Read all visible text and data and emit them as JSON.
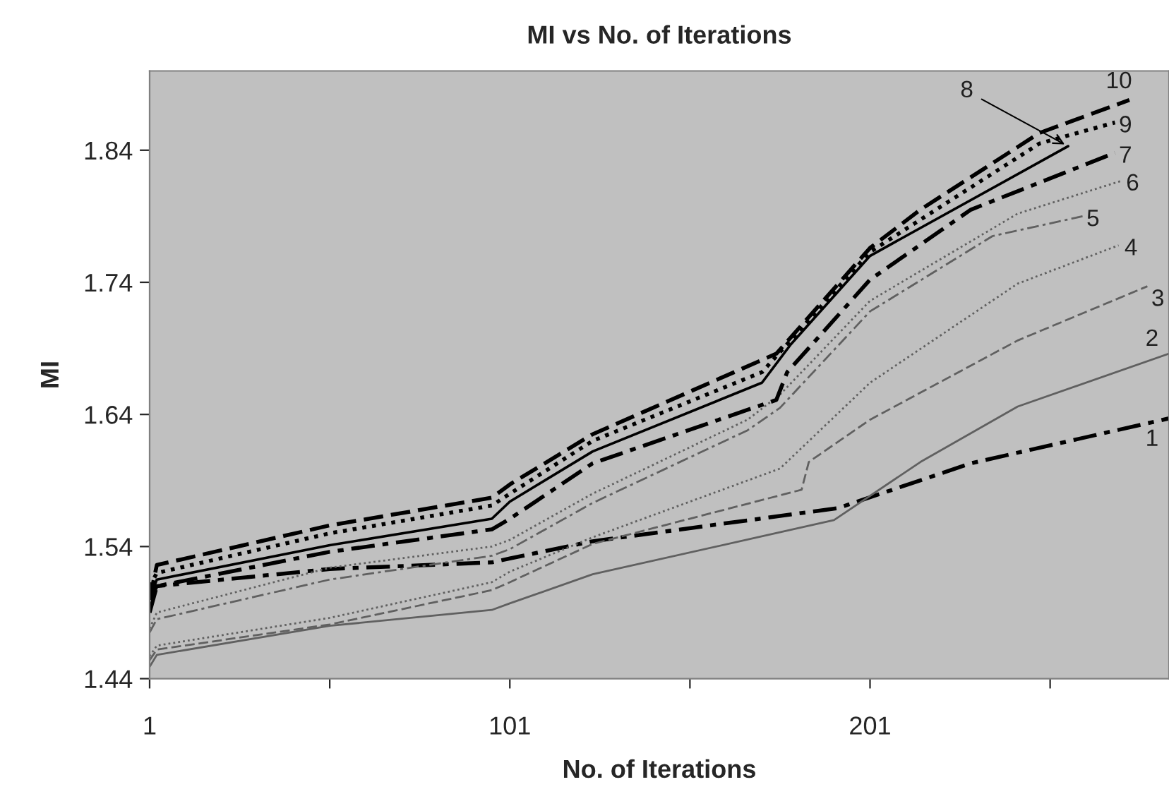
{
  "chart_data": {
    "type": "line",
    "title": "MI vs No. of Iterations",
    "xlabel": "No. of Iterations",
    "ylabel": "MI",
    "xlim": [
      1,
      284
    ],
    "xticks": [
      1,
      {
        "value": 51,
        "label": null
      },
      101,
      {
        "value": 151,
        "label": null
      },
      201,
      {
        "value": 251,
        "label": null
      }
    ],
    "ylim": [
      1.44,
      1.9
    ],
    "yticks": [
      1.44,
      1.54,
      1.64,
      1.74,
      1.84
    ],
    "grid": false,
    "legend": false,
    "marker": "none",
    "series": [
      {
        "name": "1",
        "color": "#000000",
        "line_style": "dashdot",
        "x": [
          1,
          3,
          51,
          96,
          101,
          124,
          192,
          229,
          284
        ],
        "values": [
          1.5,
          1.51,
          1.523,
          1.528,
          1.531,
          1.544,
          1.569,
          1.603,
          1.637
        ]
      },
      {
        "name": "2",
        "color": "#606060",
        "line_style": "solid",
        "x": [
          1,
          3,
          51,
          96,
          101,
          124,
          191,
          215,
          242,
          284
        ],
        "values": [
          1.449,
          1.458,
          1.48,
          1.492,
          1.497,
          1.519,
          1.56,
          1.604,
          1.646,
          1.686
        ]
      },
      {
        "name": "3",
        "color": "#606060",
        "line_style": "dashed",
        "x": [
          1,
          3,
          51,
          96,
          101,
          124,
          182,
          184,
          201,
          242,
          278
        ],
        "values": [
          1.454,
          1.462,
          1.481,
          1.507,
          1.513,
          1.542,
          1.583,
          1.604,
          1.636,
          1.696,
          1.737
        ]
      },
      {
        "name": "4",
        "color": "#606060",
        "line_style": "dotted",
        "x": [
          1,
          3,
          51,
          96,
          101,
          124,
          176,
          201,
          242,
          270
        ],
        "values": [
          1.457,
          1.465,
          1.486,
          1.513,
          1.521,
          1.547,
          1.599,
          1.664,
          1.739,
          1.768
        ]
      },
      {
        "name": "5",
        "color": "#606060",
        "line_style": "dashdot",
        "x": [
          1,
          3,
          51,
          96,
          101,
          124,
          167,
          176,
          201,
          235,
          260
        ],
        "values": [
          1.475,
          1.485,
          1.515,
          1.533,
          1.538,
          1.573,
          1.628,
          1.645,
          1.718,
          1.775,
          1.79
        ]
      },
      {
        "name": "6",
        "color": "#606060",
        "line_style": "dotted",
        "x": [
          1,
          3,
          51,
          96,
          101,
          124,
          167,
          176,
          201,
          242,
          271
        ],
        "values": [
          1.478,
          1.49,
          1.524,
          1.54,
          1.545,
          1.58,
          1.636,
          1.655,
          1.726,
          1.792,
          1.817
        ]
      },
      {
        "name": "7",
        "color": "#000000",
        "line_style": "dashdot",
        "x": [
          1,
          3,
          51,
          96,
          101,
          124,
          175,
          178,
          201,
          229,
          269
        ],
        "values": [
          1.49,
          1.51,
          1.536,
          1.553,
          1.561,
          1.603,
          1.651,
          1.672,
          1.742,
          1.795,
          1.838
        ]
      },
      {
        "name": "8",
        "color": "#000000",
        "line_style": "solid",
        "x": [
          1,
          3,
          51,
          96,
          101,
          124,
          171,
          179,
          201,
          256
        ],
        "values": [
          1.5,
          1.515,
          1.541,
          1.561,
          1.574,
          1.612,
          1.664,
          1.693,
          1.76,
          1.843
        ]
      },
      {
        "name": "9",
        "color": "#000000",
        "line_style": "dotted",
        "x": [
          1,
          3,
          51,
          96,
          101,
          124,
          171,
          201,
          248,
          269
        ],
        "values": [
          1.51,
          1.52,
          1.55,
          1.571,
          1.58,
          1.62,
          1.672,
          1.763,
          1.845,
          1.861
        ]
      },
      {
        "name": "10",
        "color": "#000000",
        "line_style": "dashed",
        "x": [
          1,
          3,
          51,
          96,
          101,
          124,
          175,
          201,
          215,
          248,
          273
        ],
        "values": [
          1.5,
          1.526,
          1.556,
          1.577,
          1.587,
          1.625,
          1.686,
          1.766,
          1.795,
          1.853,
          1.878
        ]
      }
    ]
  }
}
